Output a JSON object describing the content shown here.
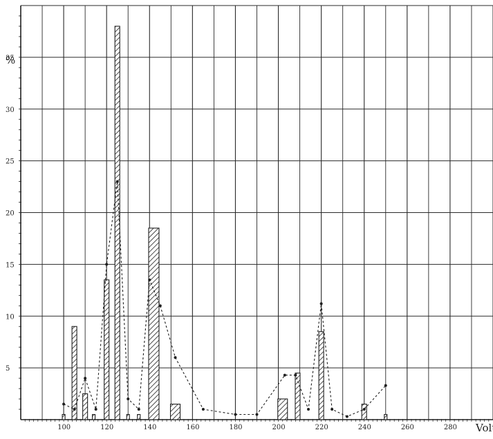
{
  "chart_data": {
    "type": "bar",
    "title": "",
    "xlabel": "Volt",
    "ylabel": "%",
    "xlim": [
      80,
      300
    ],
    "ylim": [
      0,
      40
    ],
    "grid": true,
    "x_ticks": [
      100,
      120,
      140,
      160,
      180,
      200,
      220,
      240,
      260,
      280
    ],
    "y_ticks": [
      5,
      10,
      15,
      20,
      25,
      30,
      35
    ],
    "series": [
      {
        "values_style": "hatched-bars",
        "bars": [
          {
            "x": 100,
            "value": 0.5
          },
          {
            "x": 105,
            "value": 9
          },
          {
            "x": 110,
            "value": 2.5
          },
          {
            "x": 114,
            "value": 0.5
          },
          {
            "x": 120,
            "value": 13.5
          },
          {
            "x": 125,
            "value": 38
          },
          {
            "x": 130,
            "value": 0.5
          },
          {
            "x": 135,
            "value": 0.5
          },
          {
            "x": 142,
            "value": 18.5
          },
          {
            "x": 152,
            "value": 1.5
          },
          {
            "x": 202,
            "value": 2
          },
          {
            "x": 209,
            "value": 4.5
          },
          {
            "x": 220,
            "value": 8.5
          },
          {
            "x": 240,
            "value": 1.5
          },
          {
            "x": 250,
            "value": 0.5
          }
        ]
      },
      {
        "values_style": "dashed-line-with-points",
        "points": [
          {
            "x": 100,
            "y": 1.5
          },
          {
            "x": 105,
            "y": 1
          },
          {
            "x": 110,
            "y": 4
          },
          {
            "x": 115,
            "y": 1
          },
          {
            "x": 120,
            "y": 15
          },
          {
            "x": 125,
            "y": 23
          },
          {
            "x": 130,
            "y": 2
          },
          {
            "x": 135,
            "y": 1
          },
          {
            "x": 140,
            "y": 13.5
          },
          {
            "x": 145,
            "y": 11
          },
          {
            "x": 152,
            "y": 6
          },
          {
            "x": 165,
            "y": 1
          },
          {
            "x": 180,
            "y": 0.5
          },
          {
            "x": 190,
            "y": 0.5
          },
          {
            "x": 203,
            "y": 4.3
          },
          {
            "x": 208,
            "y": 4.3
          },
          {
            "x": 214,
            "y": 1
          },
          {
            "x": 220,
            "y": 11.2
          },
          {
            "x": 225,
            "y": 1
          },
          {
            "x": 232,
            "y": 0.3
          },
          {
            "x": 240,
            "y": 1
          },
          {
            "x": 250,
            "y": 3.3
          }
        ]
      }
    ],
    "colors": {
      "ink": "#1f1f1f",
      "grid": "#2a2a2a",
      "paper": "#ffffff"
    }
  }
}
